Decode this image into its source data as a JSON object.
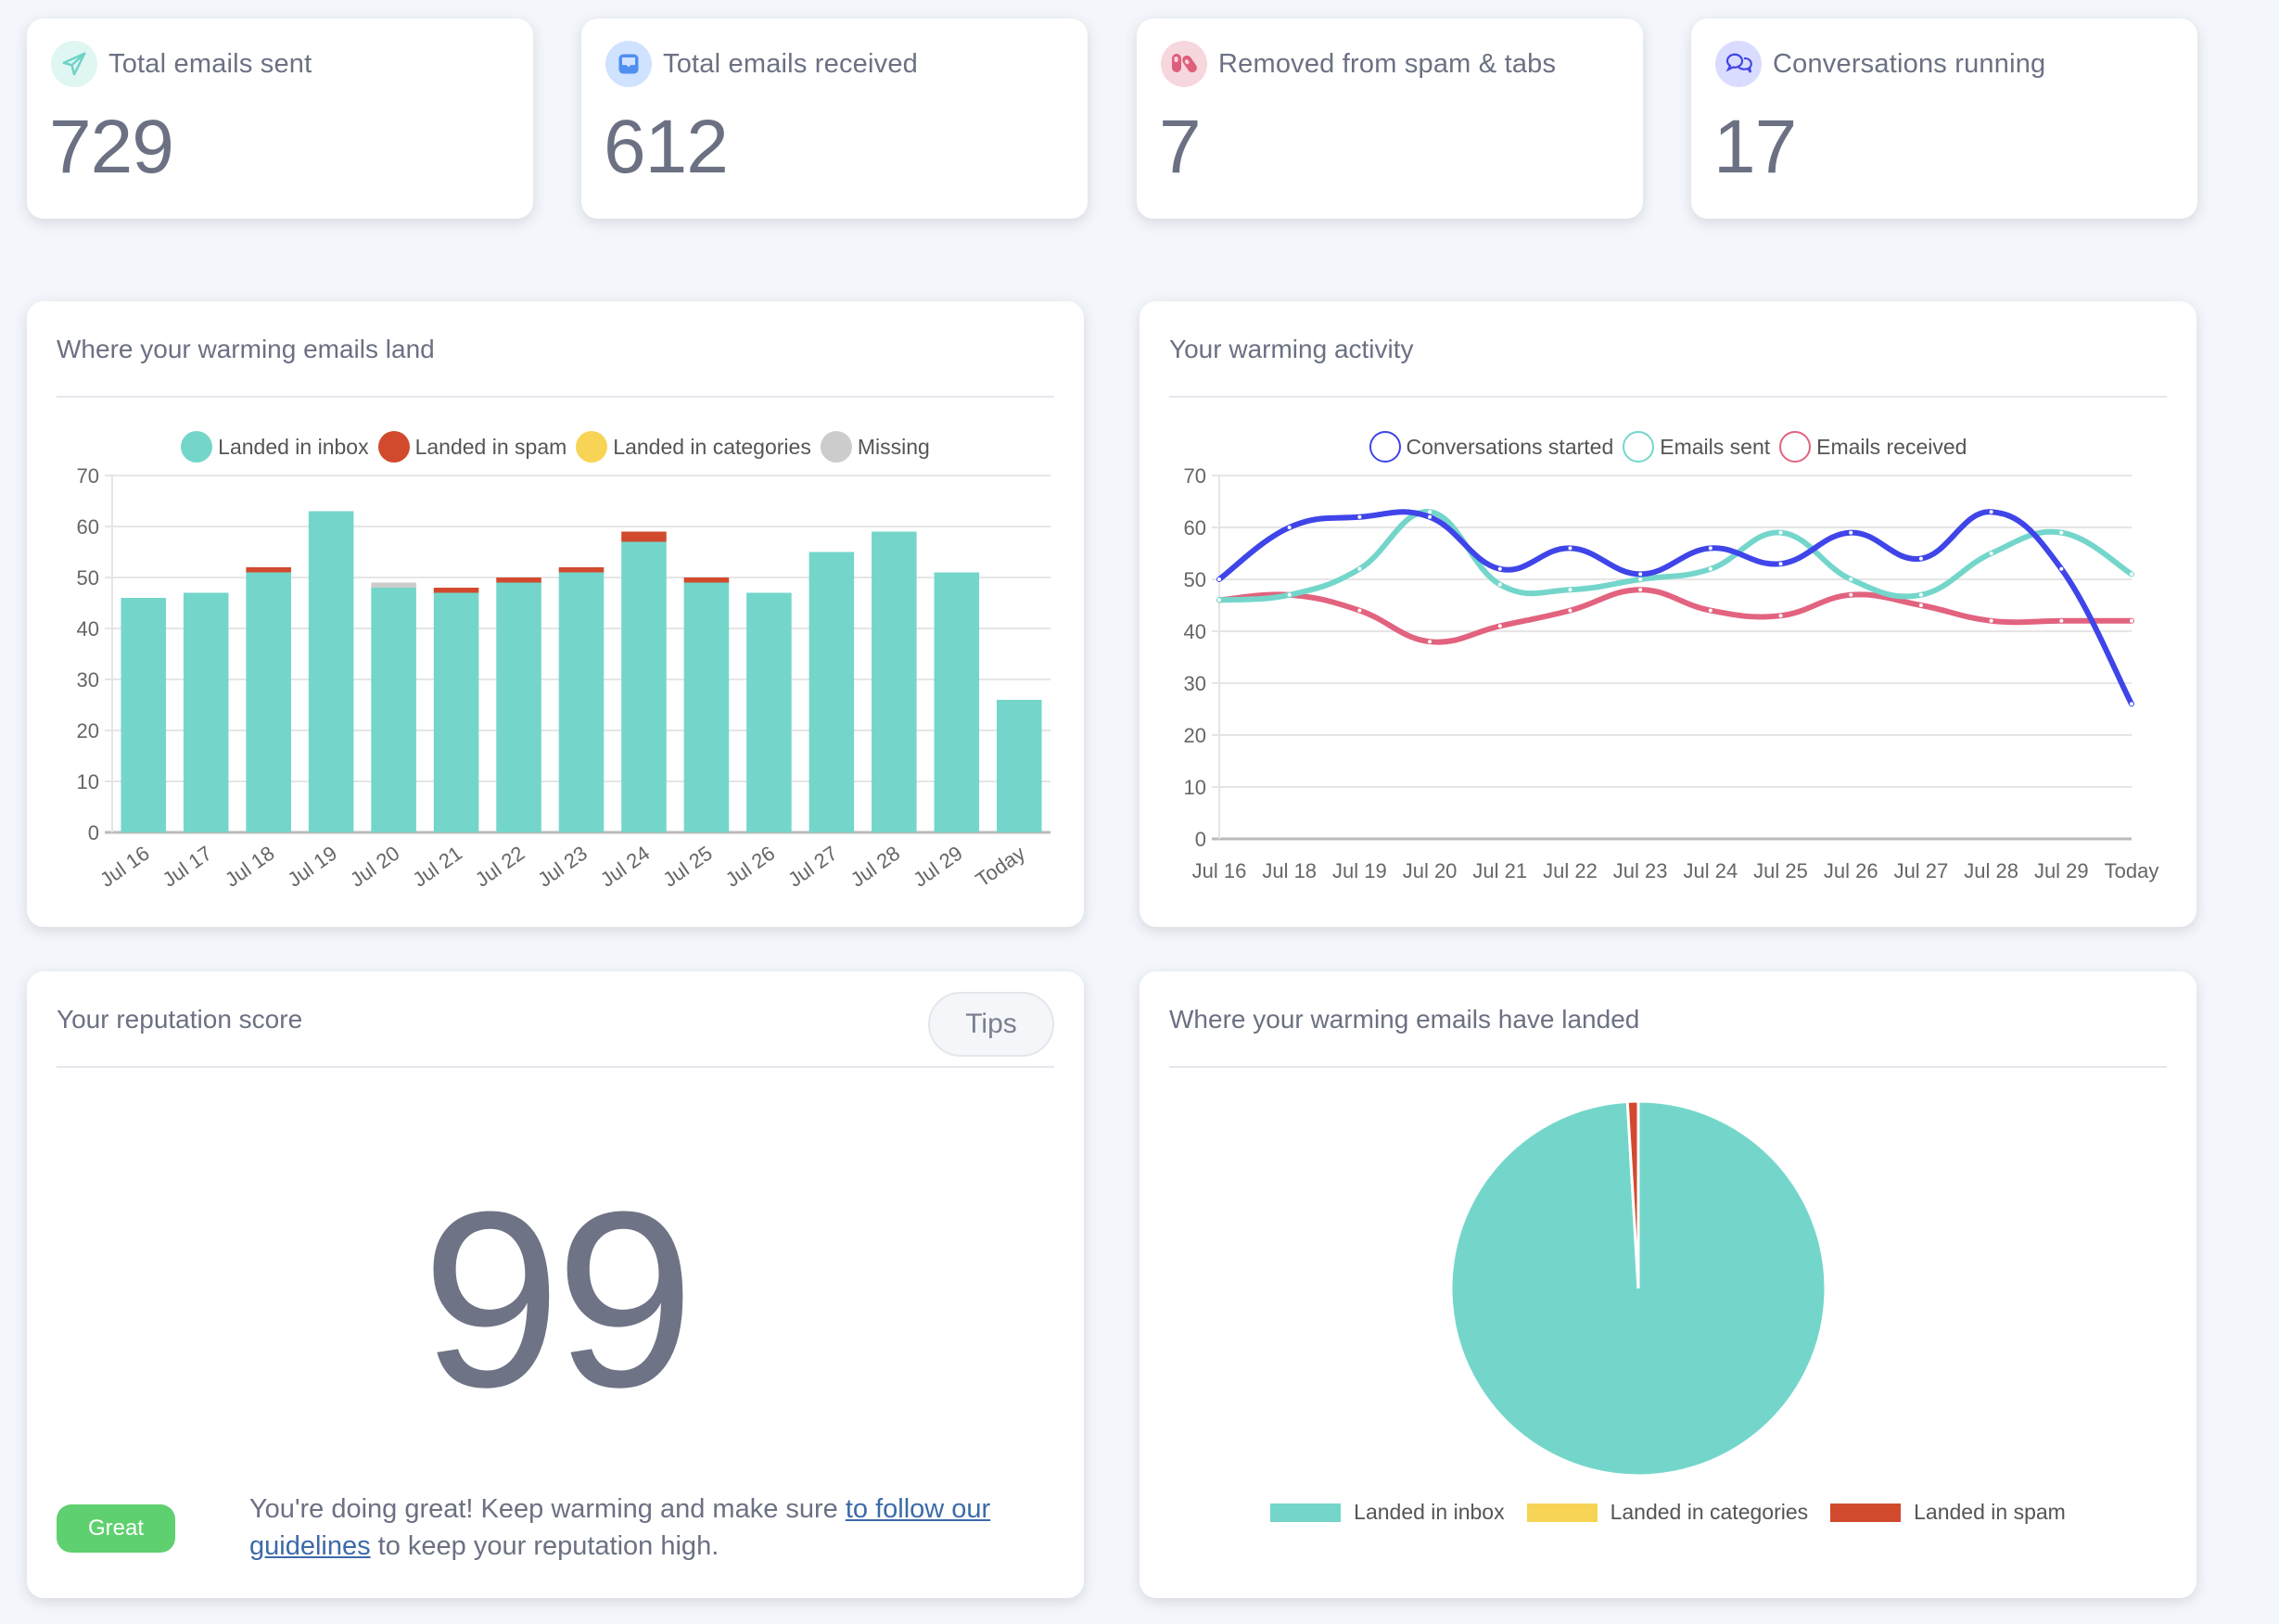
{
  "stats": [
    {
      "label": "Total emails sent",
      "value": "729",
      "icon": "paper-plane-icon",
      "icon_color": "#6fd3c6",
      "icon_bg": "#dff6f2"
    },
    {
      "label": "Total emails received",
      "value": "612",
      "icon": "inbox-tray-icon",
      "icon_color": "#4f8ff0",
      "icon_bg": "#cfe2ff"
    },
    {
      "label": "Removed from spam & tabs",
      "value": "7",
      "icon": "pills-icon",
      "icon_color": "#de5f7c",
      "icon_bg": "#f7d7de"
    },
    {
      "label": "Conversations running",
      "value": "17",
      "icon": "chat-bubbles-icon",
      "icon_color": "#3f45e8",
      "icon_bg": "#dadcff"
    }
  ],
  "bar_panel": {
    "title": "Where your warming emails land"
  },
  "line_panel": {
    "title": "Your warming activity"
  },
  "reputation": {
    "title": "Your reputation score",
    "tips_label": "Tips",
    "score": "99",
    "badge": "Great",
    "badge_color": "#5fd06f",
    "message_before": "You're doing great! Keep warming and make sure ",
    "link_text": "to follow our guidelines",
    "message_after": " to keep your reputation high."
  },
  "pie_panel": {
    "title": "Where your warming emails have landed"
  },
  "chart_data": [
    {
      "type": "bar",
      "stacked": true,
      "title": "Where your warming emails land",
      "categories": [
        "Jul 16",
        "Jul 17",
        "Jul 18",
        "Jul 19",
        "Jul 20",
        "Jul 21",
        "Jul 22",
        "Jul 23",
        "Jul 24",
        "Jul 25",
        "Jul 26",
        "Jul 27",
        "Jul 28",
        "Jul 29",
        "Today"
      ],
      "series": [
        {
          "name": "Landed in inbox",
          "color": "#74d6cb",
          "values": [
            46,
            47,
            51,
            63,
            48,
            47,
            49,
            51,
            57,
            49,
            47,
            55,
            59,
            51,
            26
          ]
        },
        {
          "name": "Landed in spam",
          "color": "#d24a2e",
          "values": [
            0,
            0,
            1,
            0,
            0,
            1,
            1,
            1,
            2,
            1,
            0,
            0,
            0,
            0,
            0
          ]
        },
        {
          "name": "Landed in categories",
          "color": "#f7d455",
          "values": [
            0,
            0,
            0,
            0,
            0,
            0,
            0,
            0,
            0,
            0,
            0,
            0,
            0,
            0,
            0
          ]
        },
        {
          "name": "Missing",
          "color": "#cccccc",
          "values": [
            0,
            0,
            0,
            0,
            1,
            0,
            0,
            0,
            0,
            0,
            0,
            0,
            0,
            0,
            0
          ]
        }
      ],
      "ylim": [
        0,
        70
      ],
      "yticks": [
        0,
        10,
        20,
        30,
        40,
        50,
        60,
        70
      ],
      "grid": true,
      "legend": "top-center",
      "xlabel": "",
      "ylabel": ""
    },
    {
      "type": "line",
      "title": "Your warming activity",
      "categories": [
        "Jul 16",
        "Jul 18",
        "Jul 19",
        "Jul 20",
        "Jul 21",
        "Jul 22",
        "Jul 23",
        "Jul 24",
        "Jul 25",
        "Jul 26",
        "Jul 27",
        "Jul 28",
        "Jul 29",
        "Today"
      ],
      "series": [
        {
          "name": "Conversations started",
          "color": "#3f45e8",
          "values": [
            50,
            60,
            62,
            62,
            52,
            56,
            51,
            56,
            53,
            59,
            54,
            63,
            52,
            26
          ]
        },
        {
          "name": "Emails sent",
          "color": "#74d6cb",
          "values": [
            46,
            47,
            52,
            63,
            49,
            48,
            50,
            52,
            59,
            50,
            47,
            55,
            59,
            51
          ]
        },
        {
          "name": "Emails received",
          "color": "#e2637f",
          "values": [
            46,
            47,
            44,
            38,
            41,
            44,
            48,
            44,
            43,
            47,
            45,
            42,
            42,
            42
          ]
        }
      ],
      "ylim": [
        0,
        70
      ],
      "yticks": [
        0,
        10,
        20,
        30,
        40,
        50,
        60,
        70
      ],
      "grid": true,
      "legend": "top-center",
      "xlabel": "",
      "ylabel": ""
    },
    {
      "type": "pie",
      "title": "Where your warming emails have landed",
      "slices": [
        {
          "name": "Landed in inbox",
          "color": "#74d6cb",
          "value": 746
        },
        {
          "name": "Landed in categories",
          "color": "#f7d455",
          "value": 0
        },
        {
          "name": "Landed in spam",
          "color": "#d24a2e",
          "value": 7
        }
      ],
      "legend": "bottom"
    }
  ]
}
